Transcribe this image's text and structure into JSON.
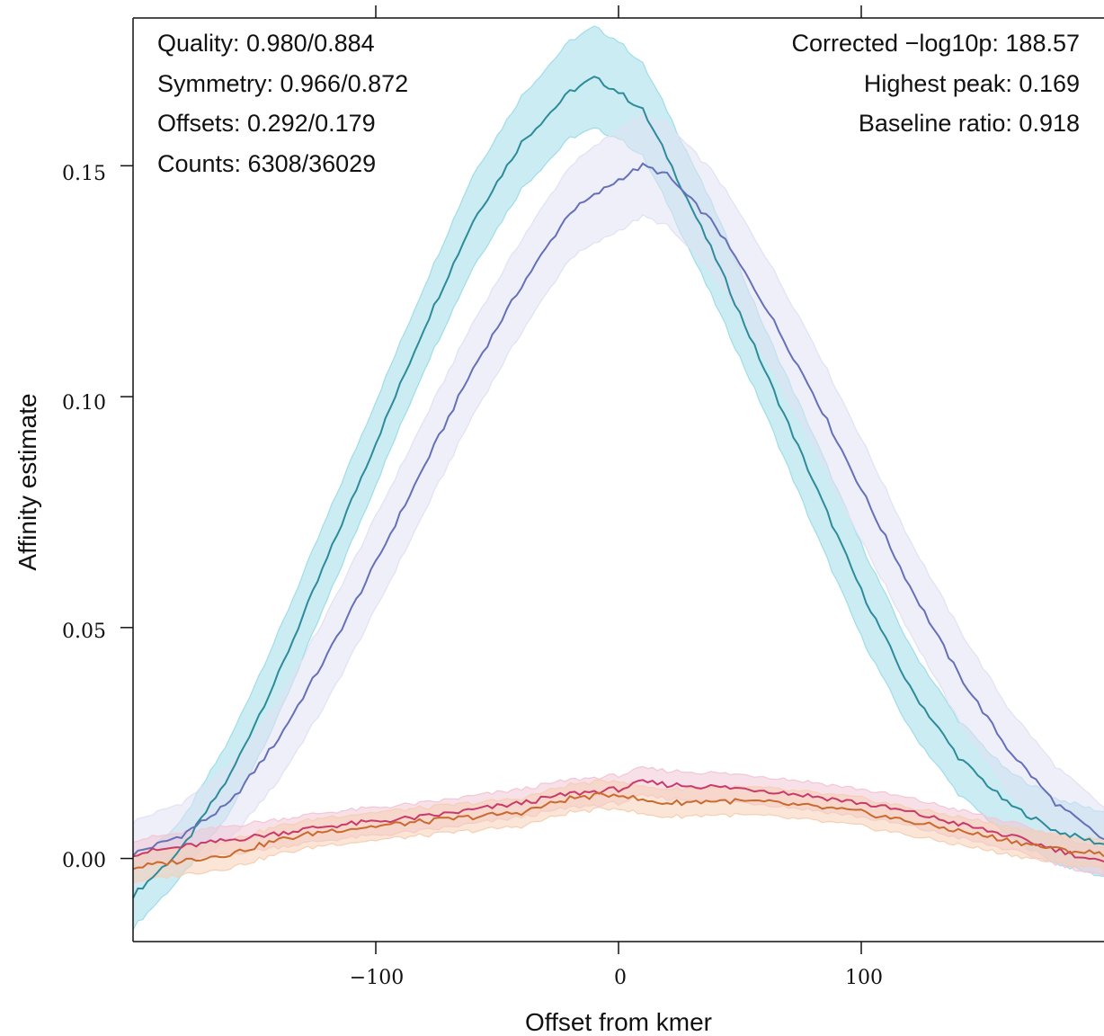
{
  "chart_data": {
    "type": "line",
    "xlabel": "Offset from kmer",
    "ylabel": "Affinity estimate",
    "xlim": [
      -200,
      200
    ],
    "ylim": [
      -0.018,
      0.182
    ],
    "x_ticks": [
      -100,
      0,
      100
    ],
    "x_tick_labels": [
      "−100",
      "0",
      "100"
    ],
    "y_ticks": [
      0.0,
      0.05,
      0.1,
      0.15
    ],
    "y_tick_labels": [
      "0.00",
      "0.05",
      "0.10",
      "0.15"
    ],
    "grid": false,
    "annotations_left": [
      "Quality: 0.980/0.884",
      "Symmetry: 0.966/0.872",
      "Offsets: 0.292/0.179",
      "Counts: 6308/36029"
    ],
    "annotations_right": [
      "Corrected −log10p: 188.57",
      "Highest peak: 0.169",
      "Baseline ratio: 0.918"
    ],
    "series": [
      {
        "color": "#2e8b99",
        "band_color": "#9fdde8",
        "x": [
          -200,
          -180,
          -160,
          -140,
          -120,
          -100,
          -80,
          -60,
          -40,
          -20,
          -10,
          0,
          10,
          20,
          40,
          60,
          80,
          100,
          120,
          140,
          160,
          180,
          200
        ],
        "y": [
          -0.008,
          0.002,
          0.018,
          0.04,
          0.065,
          0.09,
          0.115,
          0.138,
          0.155,
          0.166,
          0.169,
          0.166,
          0.162,
          0.152,
          0.13,
          0.106,
          0.082,
          0.058,
          0.037,
          0.022,
          0.012,
          0.006,
          0.003
        ],
        "lower": [
          -0.015,
          -0.004,
          0.01,
          0.031,
          0.056,
          0.081,
          0.106,
          0.128,
          0.145,
          0.156,
          0.158,
          0.156,
          0.152,
          0.142,
          0.12,
          0.097,
          0.072,
          0.048,
          0.028,
          0.014,
          0.005,
          -0.001,
          -0.004
        ],
        "upper": [
          -0.001,
          0.008,
          0.026,
          0.049,
          0.074,
          0.099,
          0.124,
          0.148,
          0.165,
          0.177,
          0.18,
          0.177,
          0.172,
          0.162,
          0.14,
          0.115,
          0.092,
          0.068,
          0.046,
          0.03,
          0.019,
          0.013,
          0.01
        ]
      },
      {
        "color": "#6670b8",
        "band_color": "#e0e2f2",
        "x": [
          -200,
          -180,
          -160,
          -140,
          -120,
          -100,
          -80,
          -60,
          -40,
          -20,
          0,
          10,
          20,
          40,
          60,
          80,
          100,
          120,
          140,
          160,
          180,
          200
        ],
        "y": [
          0.001,
          0.005,
          0.012,
          0.026,
          0.044,
          0.064,
          0.085,
          0.106,
          0.124,
          0.14,
          0.147,
          0.15,
          0.148,
          0.137,
          0.12,
          0.101,
          0.08,
          0.059,
          0.04,
          0.024,
          0.012,
          0.004
        ],
        "lower": [
          -0.006,
          -0.002,
          0.004,
          0.017,
          0.034,
          0.054,
          0.075,
          0.096,
          0.114,
          0.13,
          0.136,
          0.139,
          0.137,
          0.126,
          0.109,
          0.09,
          0.069,
          0.049,
          0.03,
          0.015,
          0.004,
          -0.003
        ],
        "upper": [
          0.008,
          0.012,
          0.02,
          0.034,
          0.053,
          0.074,
          0.095,
          0.116,
          0.134,
          0.15,
          0.158,
          0.161,
          0.159,
          0.148,
          0.131,
          0.112,
          0.091,
          0.069,
          0.05,
          0.033,
          0.02,
          0.011
        ]
      },
      {
        "color": "#c93a6a",
        "band_color": "#f2c6d6",
        "x": [
          -200,
          -160,
          -120,
          -80,
          -40,
          -20,
          0,
          10,
          20,
          40,
          60,
          80,
          100,
          120,
          140,
          160,
          180,
          200
        ],
        "y": [
          0.001,
          0.004,
          0.007,
          0.009,
          0.012,
          0.014,
          0.015,
          0.0165,
          0.016,
          0.0155,
          0.0148,
          0.0135,
          0.012,
          0.01,
          0.0075,
          0.005,
          0.002,
          -0.001
        ],
        "lower": [
          -0.002,
          0.001,
          0.004,
          0.006,
          0.009,
          0.011,
          0.012,
          0.0135,
          0.013,
          0.0125,
          0.0118,
          0.0105,
          0.009,
          0.007,
          0.0045,
          0.002,
          -0.001,
          -0.004
        ],
        "upper": [
          0.004,
          0.007,
          0.01,
          0.012,
          0.015,
          0.017,
          0.018,
          0.0195,
          0.019,
          0.0185,
          0.0178,
          0.0165,
          0.015,
          0.013,
          0.0105,
          0.008,
          0.005,
          0.002
        ]
      },
      {
        "color": "#c96a2e",
        "band_color": "#f5cfb4",
        "x": [
          -200,
          -160,
          -140,
          -120,
          -80,
          -40,
          -20,
          0,
          10,
          20,
          40,
          60,
          80,
          100,
          120,
          140,
          160,
          180,
          200
        ],
        "y": [
          -0.002,
          0.001,
          0.004,
          0.006,
          0.008,
          0.01,
          0.013,
          0.014,
          0.0125,
          0.012,
          0.0125,
          0.0122,
          0.0112,
          0.01,
          0.008,
          0.006,
          0.004,
          0.002,
          0.001
        ],
        "lower": [
          -0.005,
          -0.002,
          0.001,
          0.003,
          0.005,
          0.007,
          0.01,
          0.011,
          0.0095,
          0.009,
          0.0095,
          0.0092,
          0.0082,
          0.007,
          0.005,
          0.003,
          0.001,
          -0.001,
          -0.002
        ],
        "upper": [
          0.001,
          0.004,
          0.007,
          0.009,
          0.011,
          0.013,
          0.016,
          0.017,
          0.0155,
          0.015,
          0.0155,
          0.0152,
          0.0142,
          0.013,
          0.011,
          0.009,
          0.007,
          0.005,
          0.004
        ]
      }
    ]
  }
}
